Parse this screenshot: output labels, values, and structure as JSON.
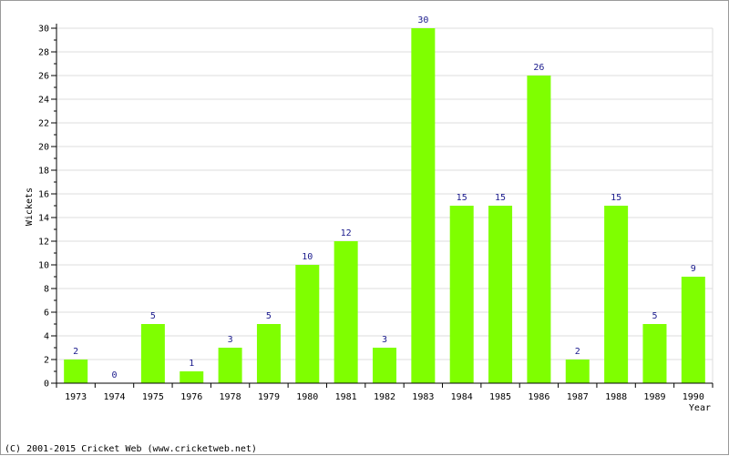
{
  "chart_data": {
    "type": "bar",
    "xlabel": "Year",
    "ylabel": "Wickets",
    "ylim": [
      0,
      30
    ],
    "y_major_ticks": [
      0,
      2,
      4,
      6,
      8,
      10,
      12,
      14,
      16,
      18,
      20,
      22,
      24,
      26,
      28,
      30
    ],
    "grid": true,
    "categories": [
      "1973",
      "1974",
      "1975",
      "1976",
      "1978",
      "1979",
      "1980",
      "1981",
      "1982",
      "1983",
      "1984",
      "1985",
      "1986",
      "1987",
      "1988",
      "1989",
      "1990"
    ],
    "values": [
      2,
      0,
      5,
      1,
      3,
      5,
      10,
      12,
      3,
      30,
      15,
      15,
      26,
      2,
      15,
      5,
      9
    ],
    "show_value_labels": true
  },
  "colors": {
    "bar": "#7fff00",
    "grid": "#dcdcdc",
    "axis": "#000000",
    "value_label": "#1a1a8c",
    "border": "#9a9a9a"
  },
  "footer": {
    "copyright": "(C) 2001-2015 Cricket Web (www.cricketweb.net)"
  }
}
